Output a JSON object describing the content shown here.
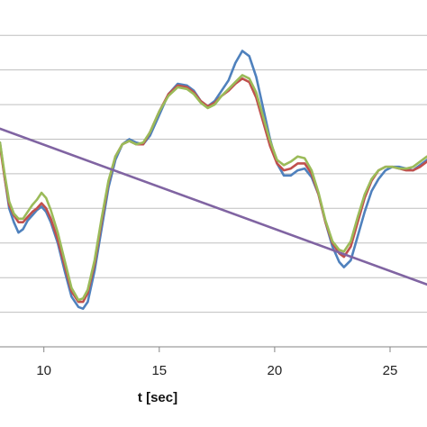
{
  "chart_data": {
    "type": "line",
    "title": "",
    "xlabel": "t [sec]",
    "ylabel": "",
    "xlim": [
      8.1,
      26.6
    ],
    "ylim": [
      -1.0,
      8.5
    ],
    "grid": "horizontal",
    "legend": "none",
    "x_ticks": [
      10,
      15,
      20,
      25
    ],
    "x_tick_labels": [
      "10",
      "15",
      "20",
      "25"
    ],
    "y_gridlines": [
      0,
      1,
      2,
      3,
      4,
      5,
      6,
      7,
      8
    ],
    "series": [
      {
        "color": "#4f81bd",
        "points": [
          [
            8.1,
            4.9
          ],
          [
            8.3,
            3.9
          ],
          [
            8.5,
            3.0
          ],
          [
            8.7,
            2.6
          ],
          [
            8.9,
            2.3
          ],
          [
            9.1,
            2.4
          ],
          [
            9.3,
            2.65
          ],
          [
            9.5,
            2.8
          ],
          [
            9.7,
            2.95
          ],
          [
            9.9,
            3.05
          ],
          [
            10.1,
            2.9
          ],
          [
            10.3,
            2.6
          ],
          [
            10.6,
            2.0
          ],
          [
            10.9,
            1.2
          ],
          [
            11.2,
            0.45
          ],
          [
            11.5,
            0.15
          ],
          [
            11.7,
            0.1
          ],
          [
            11.9,
            0.3
          ],
          [
            12.2,
            1.2
          ],
          [
            12.5,
            2.4
          ],
          [
            12.8,
            3.6
          ],
          [
            13.1,
            4.4
          ],
          [
            13.4,
            4.85
          ],
          [
            13.7,
            5.0
          ],
          [
            14.0,
            4.9
          ],
          [
            14.3,
            4.85
          ],
          [
            14.6,
            5.1
          ],
          [
            15.0,
            5.7
          ],
          [
            15.4,
            6.3
          ],
          [
            15.8,
            6.6
          ],
          [
            16.2,
            6.55
          ],
          [
            16.5,
            6.4
          ],
          [
            16.8,
            6.1
          ],
          [
            17.1,
            5.95
          ],
          [
            17.4,
            6.1
          ],
          [
            17.7,
            6.4
          ],
          [
            18.0,
            6.7
          ],
          [
            18.3,
            7.2
          ],
          [
            18.6,
            7.55
          ],
          [
            18.9,
            7.4
          ],
          [
            19.2,
            6.8
          ],
          [
            19.5,
            5.9
          ],
          [
            19.8,
            5.0
          ],
          [
            20.1,
            4.3
          ],
          [
            20.4,
            3.95
          ],
          [
            20.7,
            3.95
          ],
          [
            21.0,
            4.1
          ],
          [
            21.3,
            4.15
          ],
          [
            21.6,
            3.9
          ],
          [
            21.9,
            3.4
          ],
          [
            22.2,
            2.6
          ],
          [
            22.5,
            1.9
          ],
          [
            22.8,
            1.45
          ],
          [
            23.0,
            1.3
          ],
          [
            23.3,
            1.5
          ],
          [
            23.6,
            2.2
          ],
          [
            23.9,
            2.9
          ],
          [
            24.2,
            3.5
          ],
          [
            24.5,
            3.85
          ],
          [
            24.8,
            4.1
          ],
          [
            25.1,
            4.2
          ],
          [
            25.4,
            4.2
          ],
          [
            25.7,
            4.15
          ],
          [
            26.0,
            4.1
          ],
          [
            26.3,
            4.25
          ],
          [
            26.6,
            4.4
          ]
        ]
      },
      {
        "color": "#c0504d",
        "points": [
          [
            8.1,
            4.8
          ],
          [
            8.3,
            3.9
          ],
          [
            8.5,
            3.1
          ],
          [
            8.7,
            2.8
          ],
          [
            8.9,
            2.6
          ],
          [
            9.1,
            2.6
          ],
          [
            9.3,
            2.75
          ],
          [
            9.5,
            2.9
          ],
          [
            9.7,
            3.0
          ],
          [
            9.9,
            3.15
          ],
          [
            10.1,
            3.0
          ],
          [
            10.3,
            2.7
          ],
          [
            10.6,
            2.1
          ],
          [
            10.9,
            1.35
          ],
          [
            11.2,
            0.6
          ],
          [
            11.5,
            0.3
          ],
          [
            11.7,
            0.3
          ],
          [
            11.9,
            0.55
          ],
          [
            12.2,
            1.4
          ],
          [
            12.5,
            2.6
          ],
          [
            12.8,
            3.75
          ],
          [
            13.1,
            4.5
          ],
          [
            13.4,
            4.85
          ],
          [
            13.7,
            4.95
          ],
          [
            14.0,
            4.85
          ],
          [
            14.3,
            4.85
          ],
          [
            14.6,
            5.2
          ],
          [
            15.0,
            5.8
          ],
          [
            15.4,
            6.3
          ],
          [
            15.8,
            6.55
          ],
          [
            16.2,
            6.5
          ],
          [
            16.5,
            6.35
          ],
          [
            16.8,
            6.1
          ],
          [
            17.1,
            5.95
          ],
          [
            17.4,
            6.05
          ],
          [
            17.7,
            6.25
          ],
          [
            18.0,
            6.4
          ],
          [
            18.3,
            6.6
          ],
          [
            18.6,
            6.75
          ],
          [
            18.9,
            6.65
          ],
          [
            19.2,
            6.2
          ],
          [
            19.5,
            5.5
          ],
          [
            19.8,
            4.8
          ],
          [
            20.1,
            4.3
          ],
          [
            20.4,
            4.1
          ],
          [
            20.7,
            4.15
          ],
          [
            21.0,
            4.3
          ],
          [
            21.3,
            4.3
          ],
          [
            21.6,
            4.0
          ],
          [
            21.9,
            3.4
          ],
          [
            22.2,
            2.6
          ],
          [
            22.5,
            2.0
          ],
          [
            22.8,
            1.7
          ],
          [
            23.0,
            1.6
          ],
          [
            23.3,
            1.9
          ],
          [
            23.6,
            2.6
          ],
          [
            23.9,
            3.3
          ],
          [
            24.2,
            3.8
          ],
          [
            24.5,
            4.1
          ],
          [
            24.8,
            4.2
          ],
          [
            25.1,
            4.2
          ],
          [
            25.4,
            4.15
          ],
          [
            25.7,
            4.1
          ],
          [
            26.0,
            4.1
          ],
          [
            26.3,
            4.2
          ],
          [
            26.6,
            4.35
          ]
        ]
      },
      {
        "color": "#9bbb59",
        "points": [
          [
            8.1,
            4.9
          ],
          [
            8.3,
            4.0
          ],
          [
            8.5,
            3.2
          ],
          [
            8.7,
            2.85
          ],
          [
            8.9,
            2.7
          ],
          [
            9.1,
            2.7
          ],
          [
            9.3,
            2.9
          ],
          [
            9.5,
            3.1
          ],
          [
            9.7,
            3.25
          ],
          [
            9.9,
            3.45
          ],
          [
            10.1,
            3.3
          ],
          [
            10.3,
            2.95
          ],
          [
            10.6,
            2.3
          ],
          [
            10.9,
            1.5
          ],
          [
            11.2,
            0.7
          ],
          [
            11.5,
            0.35
          ],
          [
            11.7,
            0.4
          ],
          [
            11.9,
            0.65
          ],
          [
            12.2,
            1.5
          ],
          [
            12.5,
            2.7
          ],
          [
            12.8,
            3.8
          ],
          [
            13.1,
            4.5
          ],
          [
            13.4,
            4.85
          ],
          [
            13.7,
            4.95
          ],
          [
            14.0,
            4.85
          ],
          [
            14.3,
            4.9
          ],
          [
            14.6,
            5.2
          ],
          [
            15.0,
            5.8
          ],
          [
            15.4,
            6.25
          ],
          [
            15.8,
            6.5
          ],
          [
            16.2,
            6.45
          ],
          [
            16.5,
            6.3
          ],
          [
            16.8,
            6.05
          ],
          [
            17.1,
            5.9
          ],
          [
            17.4,
            6.0
          ],
          [
            17.7,
            6.25
          ],
          [
            18.0,
            6.45
          ],
          [
            18.3,
            6.65
          ],
          [
            18.6,
            6.85
          ],
          [
            18.9,
            6.75
          ],
          [
            19.2,
            6.35
          ],
          [
            19.5,
            5.65
          ],
          [
            19.8,
            4.95
          ],
          [
            20.1,
            4.4
          ],
          [
            20.4,
            4.25
          ],
          [
            20.7,
            4.35
          ],
          [
            21.0,
            4.5
          ],
          [
            21.3,
            4.45
          ],
          [
            21.6,
            4.1
          ],
          [
            21.9,
            3.45
          ],
          [
            22.2,
            2.65
          ],
          [
            22.5,
            2.05
          ],
          [
            22.8,
            1.8
          ],
          [
            23.0,
            1.75
          ],
          [
            23.3,
            2.05
          ],
          [
            23.6,
            2.75
          ],
          [
            23.9,
            3.4
          ],
          [
            24.2,
            3.85
          ],
          [
            24.5,
            4.1
          ],
          [
            24.8,
            4.2
          ],
          [
            25.1,
            4.2
          ],
          [
            25.4,
            4.15
          ],
          [
            25.7,
            4.15
          ],
          [
            26.0,
            4.2
          ],
          [
            26.3,
            4.35
          ],
          [
            26.6,
            4.5
          ]
        ]
      },
      {
        "color": "#8064a2",
        "points": [
          [
            8.1,
            5.3
          ],
          [
            26.6,
            0.8
          ]
        ]
      }
    ]
  }
}
